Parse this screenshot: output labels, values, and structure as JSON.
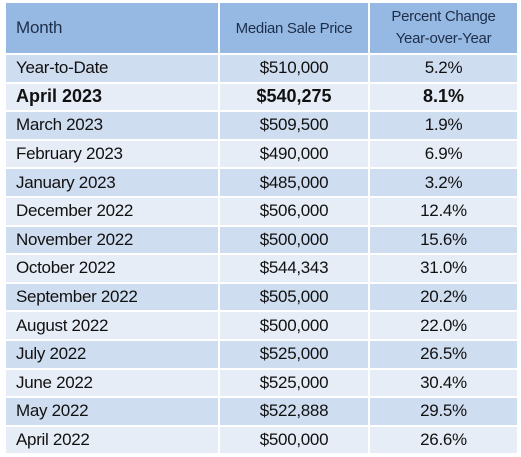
{
  "chart_data": {
    "type": "table",
    "columns": [
      "Month",
      "Median Sale Price",
      "Percent Change",
      "Year-over-Year"
    ],
    "rows": [
      {
        "month": "Year-to-Date",
        "price": "$510,000",
        "change": "5.2%"
      },
      {
        "month": "April 2023",
        "price": "$540,275",
        "change": "8.1%"
      },
      {
        "month": "March 2023",
        "price": "$509,500",
        "change": "1.9%"
      },
      {
        "month": "February 2023",
        "price": "$490,000",
        "change": "6.9%"
      },
      {
        "month": "January 2023",
        "price": "$485,000",
        "change": "3.2%"
      },
      {
        "month": "December 2022",
        "price": "$506,000",
        "change": "12.4%"
      },
      {
        "month": "November 2022",
        "price": "$500,000",
        "change": "15.6%"
      },
      {
        "month": "October 2022",
        "price": "$544,343",
        "change": "31.0%"
      },
      {
        "month": "September 2022",
        "price": "$505,000",
        "change": "20.2%"
      },
      {
        "month": "August 2022",
        "price": "$500,000",
        "change": "22.0%"
      },
      {
        "month": "July 2022",
        "price": "$525,000",
        "change": "26.5%"
      },
      {
        "month": "June 2022",
        "price": "$525,000",
        "change": "30.4%"
      },
      {
        "month": "May 2022",
        "price": "$522,888",
        "change": "29.5%"
      },
      {
        "month": "April 2022",
        "price": "$500,000",
        "change": "26.6%"
      }
    ],
    "highlight_row": 1
  },
  "colors": {
    "header_bg": "#95b9e3",
    "row_odd": "#cfddf0",
    "row_even": "#e6edf7",
    "header_text": "#1e2e4a"
  }
}
